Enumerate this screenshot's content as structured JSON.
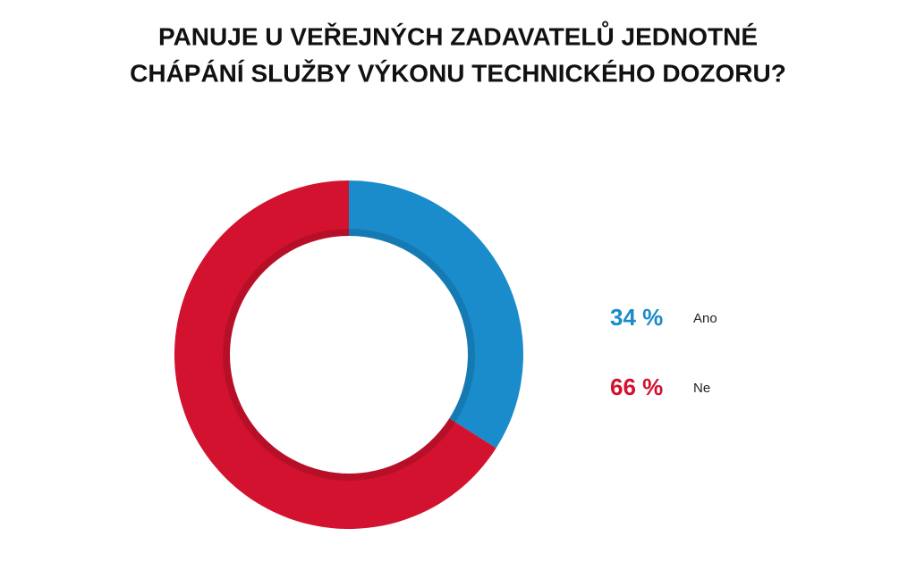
{
  "chart_data": {
    "type": "donut",
    "title": [
      "PANUJE U VEŘEJNÝCH ZADAVATELŮ JEDNOTNÉ",
      "CHÁPÁNÍ SLUŽBY VÝKONU TECHNICKÉHO DOZORU?"
    ],
    "categories": [
      "Ano",
      "Ne"
    ],
    "values": [
      34,
      66
    ],
    "value_labels": [
      "34 %",
      "66 %"
    ],
    "colors": [
      "#1a8bcb",
      "#d2122e"
    ]
  }
}
